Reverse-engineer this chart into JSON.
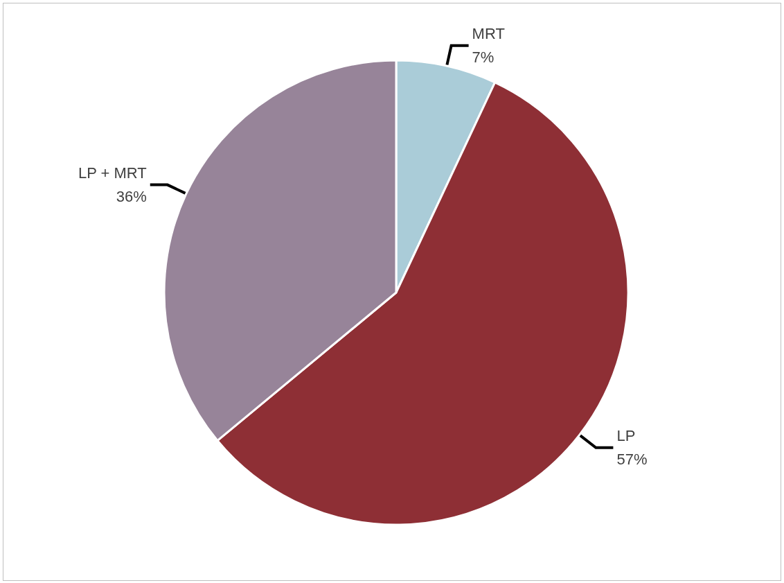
{
  "chart_data": {
    "type": "pie",
    "categories": [
      "MRT",
      "LP",
      "LP + MRT"
    ],
    "values": [
      7,
      57,
      36
    ],
    "value_labels": [
      "7%",
      "57%",
      "36%"
    ],
    "colors": [
      "#aaccd8",
      "#8e2f35",
      "#978499"
    ],
    "legend": false
  }
}
